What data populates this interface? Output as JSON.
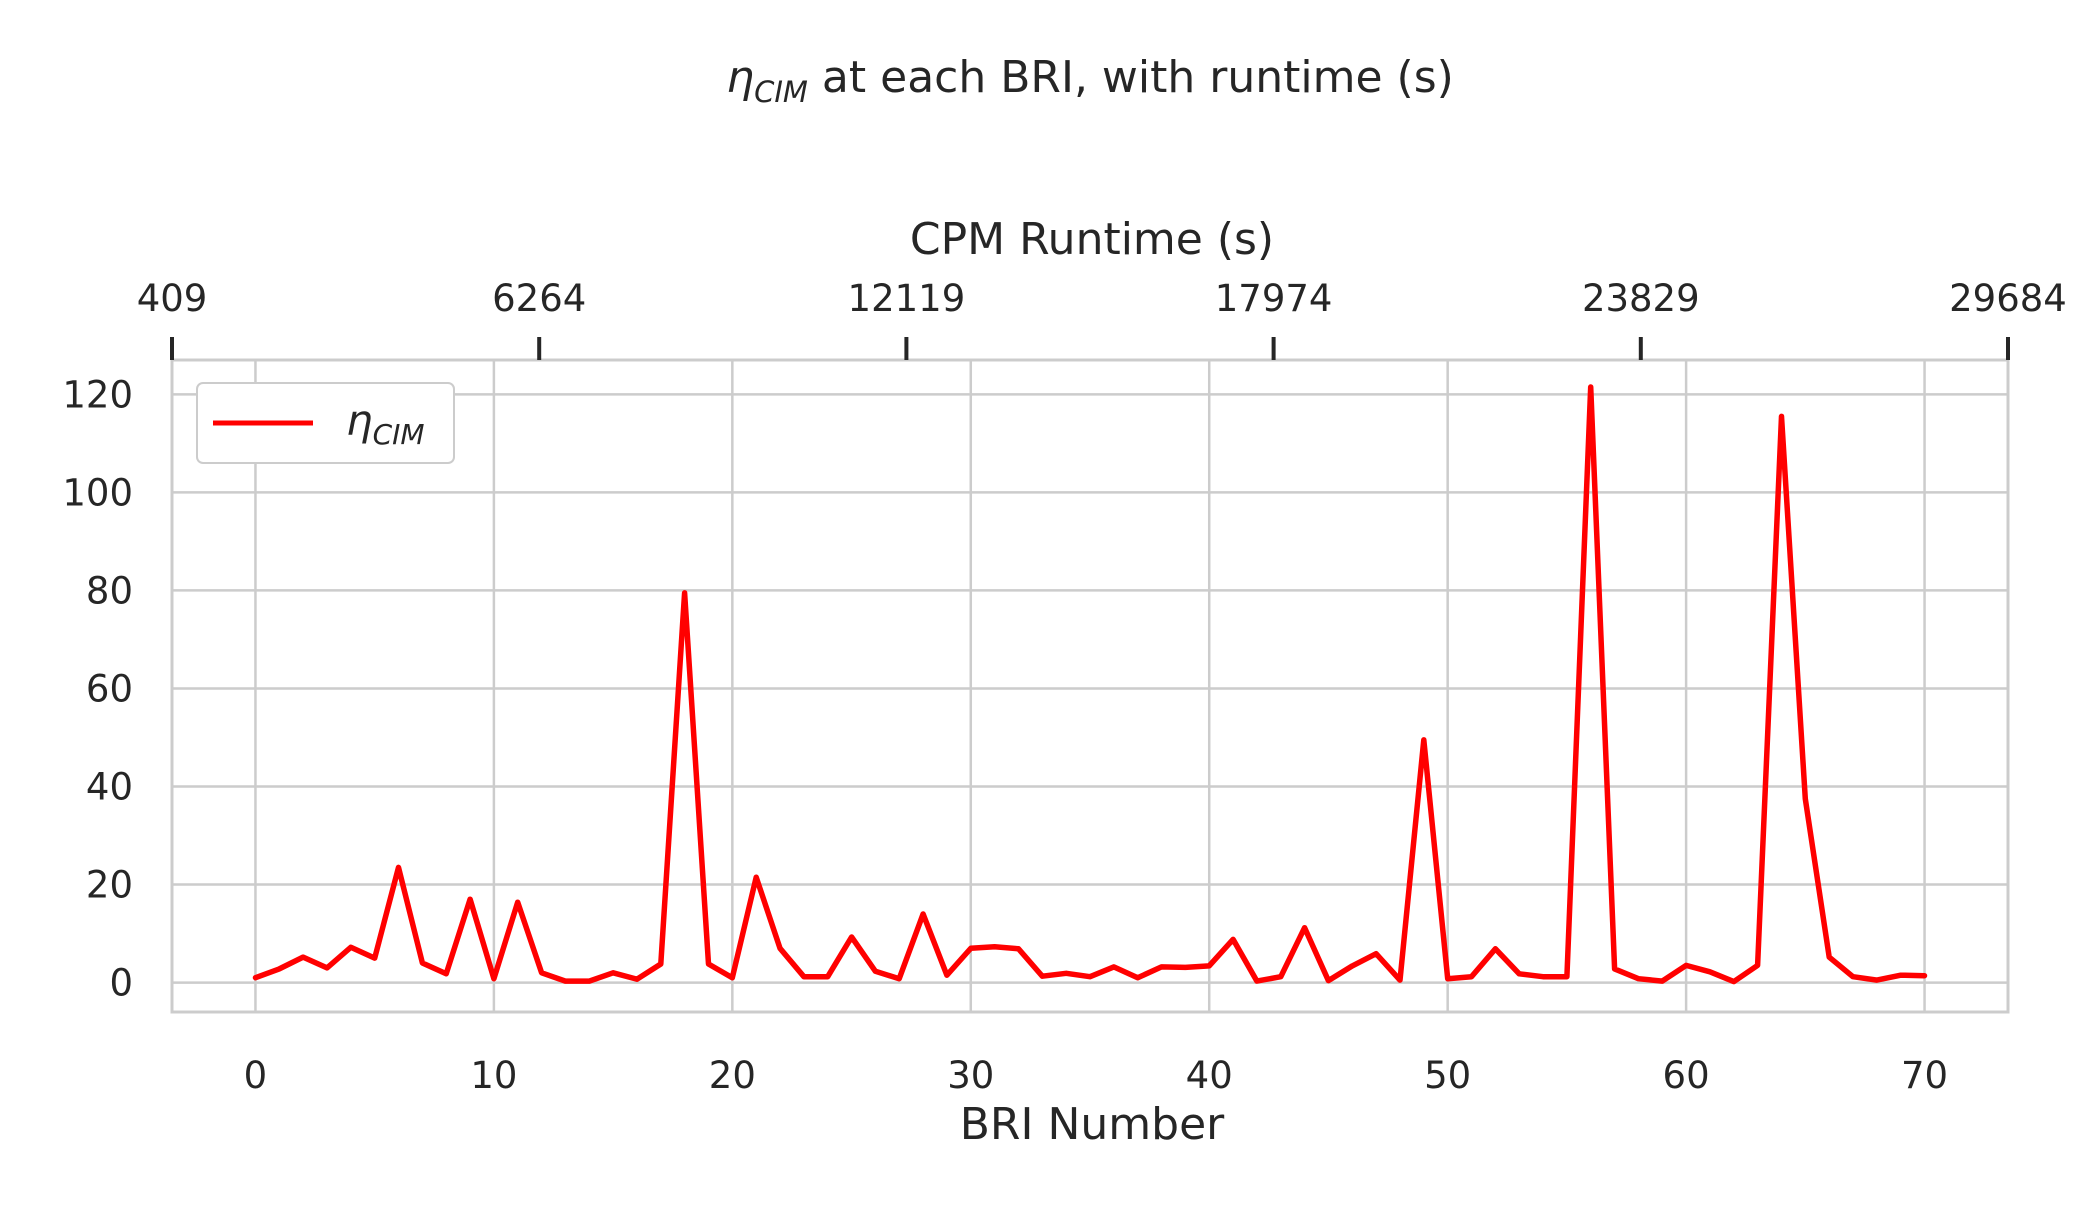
{
  "chart_data": {
    "type": "line",
    "title": {
      "symbol": "η",
      "subscript": "CIM",
      "text": " at each BRI, with runtime (s)"
    },
    "xlabel": "BRI Number",
    "ylabel": "",
    "top_xlabel": "CPM Runtime (s)",
    "xlim": [
      -3.5,
      73.5
    ],
    "ylim": [
      -6,
      127
    ],
    "x_ticks": [
      0,
      10,
      20,
      30,
      40,
      50,
      60,
      70
    ],
    "y_ticks": [
      0,
      20,
      40,
      60,
      80,
      100,
      120
    ],
    "top_ticks": [
      "409",
      "6264",
      "12119",
      "17974",
      "23829",
      "29684"
    ],
    "grid": true,
    "legend_position": "upper left",
    "series": [
      {
        "name": "η_CIM",
        "name_symbol": "η",
        "name_subscript": "CIM",
        "color": "#ff0000",
        "x": [
          0,
          1,
          2,
          3,
          4,
          5,
          6,
          7,
          8,
          9,
          10,
          11,
          12,
          13,
          14,
          15,
          16,
          17,
          18,
          19,
          20,
          21,
          22,
          23,
          24,
          25,
          26,
          27,
          28,
          29,
          30,
          31,
          32,
          33,
          34,
          35,
          36,
          37,
          38,
          39,
          40,
          41,
          42,
          43,
          44,
          45,
          46,
          47,
          48,
          49,
          50,
          51,
          52,
          53,
          54,
          55,
          56,
          57,
          58,
          59,
          60,
          61,
          62,
          63,
          64,
          65,
          66,
          67,
          68,
          69,
          70
        ],
        "values": [
          1,
          2.8,
          5.2,
          3,
          7.2,
          5,
          23.5,
          4,
          1.8,
          17,
          0.8,
          16.4,
          2,
          0.3,
          0.3,
          2,
          0.7,
          3.8,
          79.5,
          3.8,
          1,
          21.5,
          7,
          1.2,
          1.2,
          9.3,
          2.3,
          0.8,
          14,
          1.5,
          7,
          7.3,
          6.9,
          1.3,
          1.9,
          1.2,
          3.2,
          1,
          3.2,
          3.1,
          3.4,
          8.8,
          0.3,
          1.2,
          11.2,
          0.4,
          3.4,
          5.9,
          0.5,
          49.5,
          0.8,
          1.2,
          6.9,
          1.8,
          1.2,
          1.2,
          121.5,
          2.8,
          0.8,
          0.3,
          3.5,
          2.2,
          0.2,
          3.5,
          115.5,
          37.5,
          5.2,
          1.2,
          0.5,
          1.5,
          1.4
        ]
      }
    ],
    "colors": {
      "line": "#ff0000",
      "grid": "#cccccc",
      "text": "#262626"
    }
  }
}
